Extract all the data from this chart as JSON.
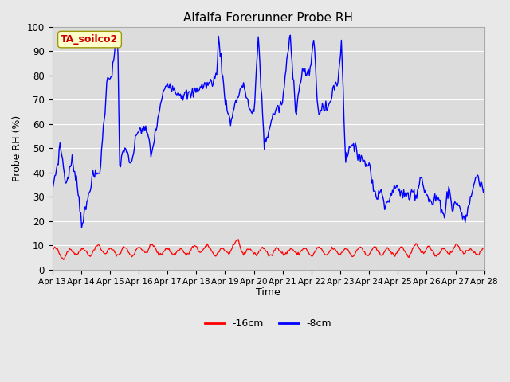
{
  "title": "Alfalfa Forerunner Probe RH",
  "ylabel": "Probe RH (%)",
  "xlabel": "Time",
  "annotation": "TA_soilco2",
  "ylim": [
    0,
    100
  ],
  "fig_bg_color": "#e8e8e8",
  "plot_bg_color": "#dcdcdc",
  "grid_color": "#ffffff",
  "legend_entries": [
    "-16cm",
    "-8cm"
  ],
  "legend_colors": [
    "#ff0000",
    "#0000ff"
  ],
  "x_tick_labels": [
    "Apr 13",
    "Apr 14",
    "Apr 15",
    "Apr 16",
    "Apr 17",
    "Apr 18",
    "Apr 19",
    "Apr 20",
    "Apr 21",
    "Apr 22",
    "Apr 23",
    "Apr 24",
    "Apr 25",
    "Apr 26",
    "Apr 27",
    "Apr 28"
  ],
  "blue_keypoints": [
    [
      0.0,
      33
    ],
    [
      0.15,
      45
    ],
    [
      0.2,
      52
    ],
    [
      0.35,
      35
    ],
    [
      0.5,
      45
    ],
    [
      0.6,
      39
    ],
    [
      0.75,
      19
    ],
    [
      0.85,
      25
    ],
    [
      1.0,
      38
    ],
    [
      1.1,
      39
    ],
    [
      1.2,
      40
    ],
    [
      1.4,
      80
    ],
    [
      1.5,
      80
    ],
    [
      1.65,
      99
    ],
    [
      1.7,
      43
    ],
    [
      1.8,
      49
    ],
    [
      1.85,
      51
    ],
    [
      1.95,
      43
    ],
    [
      2.0,
      44
    ],
    [
      2.15,
      57
    ],
    [
      2.2,
      58
    ],
    [
      2.4,
      57
    ],
    [
      2.5,
      47
    ],
    [
      2.7,
      65
    ],
    [
      2.85,
      76
    ],
    [
      2.95,
      77
    ],
    [
      3.1,
      74
    ],
    [
      3.3,
      72
    ],
    [
      3.5,
      72
    ],
    [
      3.7,
      75
    ],
    [
      4.0,
      77
    ],
    [
      4.15,
      80
    ],
    [
      4.2,
      97
    ],
    [
      4.35,
      71
    ],
    [
      4.45,
      65
    ],
    [
      4.5,
      59
    ],
    [
      4.6,
      69
    ],
    [
      4.65,
      69
    ],
    [
      4.75,
      75
    ],
    [
      4.85,
      75
    ],
    [
      5.0,
      65
    ],
    [
      5.1,
      65
    ],
    [
      5.2,
      97
    ],
    [
      5.35,
      51
    ],
    [
      5.6,
      65
    ],
    [
      5.8,
      68
    ],
    [
      6.0,
      97
    ],
    [
      6.15,
      65
    ],
    [
      6.3,
      82
    ],
    [
      6.4,
      81
    ],
    [
      6.5,
      80
    ],
    [
      6.6,
      97
    ],
    [
      6.7,
      65
    ],
    [
      6.8,
      67
    ],
    [
      6.9,
      66
    ],
    [
      7.0,
      68
    ],
    [
      7.1,
      76
    ],
    [
      7.2,
      76
    ],
    [
      7.3,
      95
    ],
    [
      7.4,
      44
    ],
    [
      7.5,
      52
    ],
    [
      7.6,
      50
    ],
    [
      7.7,
      48
    ],
    [
      7.8,
      47
    ],
    [
      7.9,
      43
    ],
    [
      8.0,
      44
    ],
    [
      8.15,
      30
    ],
    [
      8.3,
      32
    ],
    [
      8.4,
      28
    ],
    [
      8.5,
      28
    ],
    [
      8.6,
      34
    ],
    [
      8.7,
      33
    ],
    [
      8.8,
      32
    ],
    [
      9.0,
      30
    ],
    [
      9.1,
      33
    ],
    [
      9.2,
      31
    ],
    [
      9.3,
      40
    ],
    [
      9.4,
      32
    ],
    [
      9.5,
      29
    ],
    [
      9.6,
      27
    ],
    [
      9.7,
      30
    ],
    [
      9.8,
      27
    ],
    [
      9.9,
      22
    ],
    [
      10.0,
      35
    ],
    [
      10.1,
      25
    ],
    [
      10.2,
      28
    ],
    [
      10.3,
      25
    ],
    [
      10.4,
      20
    ],
    [
      10.5,
      25
    ],
    [
      10.6,
      33
    ],
    [
      10.7,
      39
    ],
    [
      10.85,
      34
    ],
    [
      10.9,
      33
    ]
  ],
  "red_keypoints": [
    [
      0.0,
      8
    ],
    [
      0.3,
      6
    ],
    [
      0.6,
      8
    ],
    [
      0.9,
      7
    ],
    [
      1.2,
      9
    ],
    [
      1.5,
      7
    ],
    [
      1.8,
      8
    ],
    [
      2.0,
      7
    ],
    [
      2.2,
      8
    ],
    [
      2.5,
      9
    ],
    [
      2.8,
      7
    ],
    [
      3.0,
      8
    ],
    [
      3.2,
      7
    ],
    [
      3.5,
      8
    ],
    [
      3.8,
      9
    ],
    [
      4.0,
      8
    ],
    [
      4.2,
      7
    ],
    [
      4.4,
      8
    ],
    [
      4.6,
      9
    ],
    [
      4.7,
      12
    ],
    [
      4.8,
      8
    ],
    [
      5.0,
      7
    ],
    [
      5.2,
      8
    ],
    [
      5.5,
      7
    ],
    [
      5.8,
      8
    ],
    [
      6.0,
      7
    ],
    [
      6.2,
      8
    ],
    [
      6.5,
      7
    ],
    [
      6.8,
      8
    ],
    [
      7.0,
      7
    ],
    [
      7.2,
      8
    ],
    [
      7.5,
      7
    ],
    [
      7.8,
      8
    ],
    [
      8.0,
      7
    ],
    [
      8.2,
      8
    ],
    [
      8.5,
      7
    ],
    [
      8.8,
      8
    ],
    [
      9.0,
      7
    ],
    [
      9.2,
      9
    ],
    [
      9.5,
      8
    ],
    [
      9.8,
      7
    ],
    [
      10.0,
      8
    ],
    [
      10.2,
      9
    ],
    [
      10.4,
      8
    ],
    [
      10.6,
      7
    ],
    [
      10.9,
      8
    ]
  ],
  "n_points": 500
}
